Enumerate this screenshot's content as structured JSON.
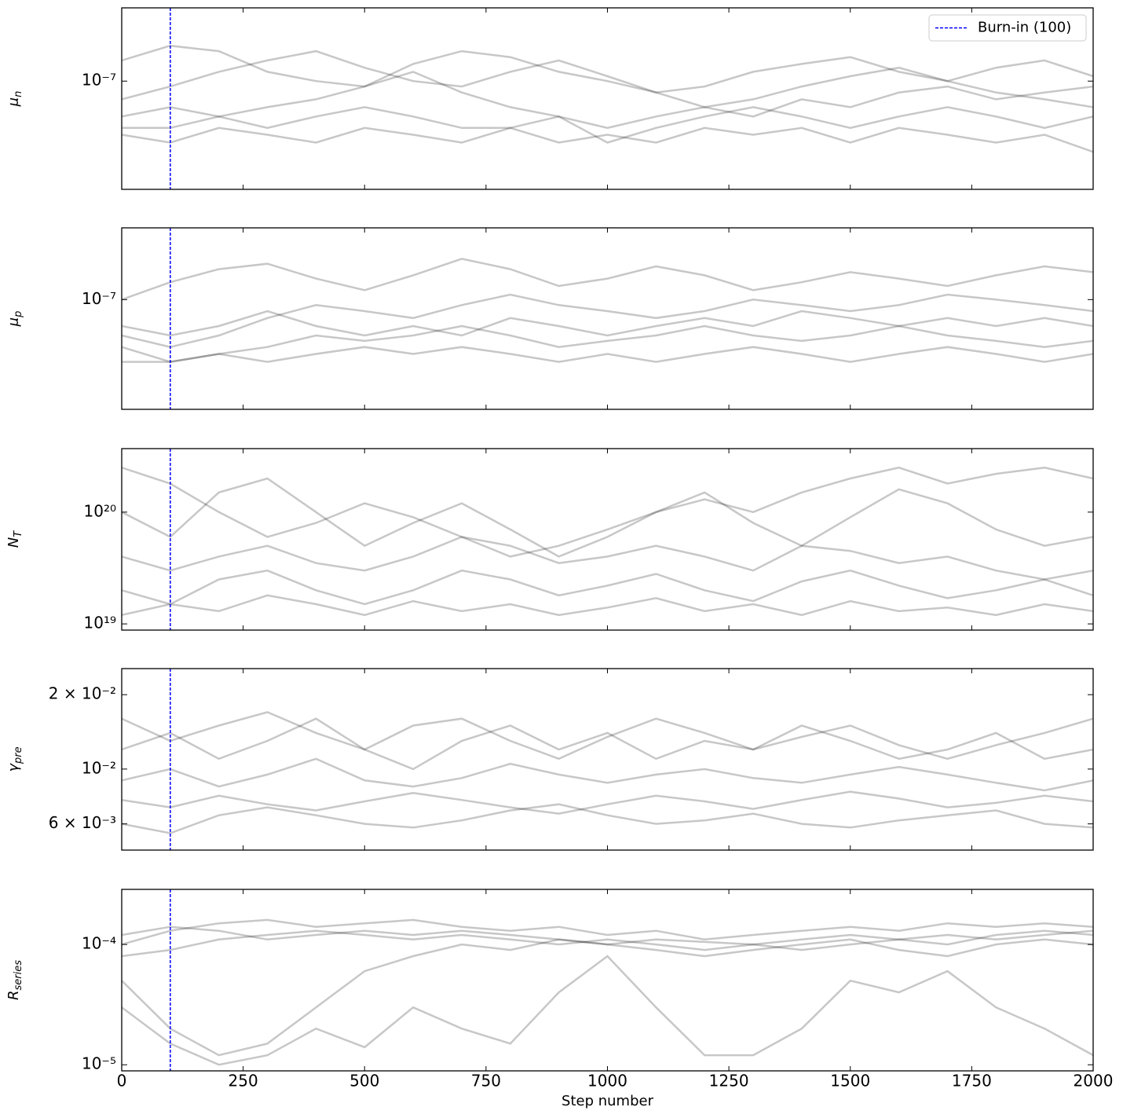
{
  "chart_data": [
    {
      "type": "line",
      "ylabel": {
        "symbol": "μ",
        "subscript": "n"
      },
      "log_y": true,
      "color": "#000000",
      "alpha": 0.22,
      "burn_in": 100,
      "burn_in_color": "#0000ff",
      "legend": {
        "label": "Burn-in (100)",
        "loc": "upper right"
      },
      "xlim": [
        0,
        2000
      ],
      "xticks": [
        0,
        250,
        500,
        750,
        1000,
        1250,
        1500,
        1750,
        2000
      ],
      "ylim": [
        1.2e-08,
        4.2e-07
      ],
      "yticks": [
        {
          "value": 1e-07,
          "label": "10⁻⁷"
        }
      ],
      "x": [
        0,
        100,
        200,
        300,
        400,
        500,
        600,
        700,
        800,
        900,
        1000,
        1100,
        1200,
        1300,
        1400,
        1500,
        1600,
        1700,
        1800,
        1900,
        2000
      ],
      "series": [
        {
          "values": [
            5e-08,
            6e-08,
            5e-08,
            4e-08,
            5e-08,
            6e-08,
            5e-08,
            4e-08,
            4e-08,
            5e-08,
            3e-08,
            4e-08,
            5e-08,
            6e-08,
            5e-08,
            4e-08,
            5e-08,
            6e-08,
            5e-08,
            4e-08,
            5e-08
          ]
        },
        {
          "values": [
            7e-08,
            9e-08,
            1.2e-07,
            1.5e-07,
            1.8e-07,
            1.3e-07,
            1e-07,
            9e-08,
            1.2e-07,
            1.5e-07,
            1.1e-07,
            8e-08,
            9e-08,
            1.2e-07,
            1.4e-07,
            1.6e-07,
            1.2e-07,
            1e-07,
            1.3e-07,
            1.5e-07,
            1.1e-07
          ]
        },
        {
          "values": [
            4e-08,
            4e-08,
            5e-08,
            6e-08,
            7e-08,
            9e-08,
            1.2e-07,
            8e-08,
            6e-08,
            5e-08,
            4e-08,
            5e-08,
            6e-08,
            5e-08,
            7e-08,
            6e-08,
            8e-08,
            9e-08,
            7e-08,
            8e-08,
            9e-08
          ]
        },
        {
          "values": [
            1.5e-07,
            2e-07,
            1.8e-07,
            1.2e-07,
            1e-07,
            9e-08,
            1.4e-07,
            1.8e-07,
            1.6e-07,
            1.2e-07,
            1e-07,
            8e-08,
            6e-08,
            7e-08,
            9e-08,
            1.1e-07,
            1.3e-07,
            1e-07,
            8e-08,
            7e-08,
            6e-08
          ]
        },
        {
          "values": [
            3.5e-08,
            3e-08,
            4e-08,
            3.5e-08,
            3e-08,
            4e-08,
            3.5e-08,
            3e-08,
            4e-08,
            3e-08,
            3.5e-08,
            3e-08,
            4e-08,
            3.5e-08,
            4e-08,
            3e-08,
            4e-08,
            3.5e-08,
            3e-08,
            3.5e-08,
            2.5e-08
          ]
        }
      ]
    },
    {
      "type": "line",
      "ylabel": {
        "symbol": "μ",
        "subscript": "p"
      },
      "log_y": true,
      "color": "#000000",
      "alpha": 0.22,
      "burn_in": 100,
      "burn_in_color": "#0000ff",
      "xlim": [
        0,
        2000
      ],
      "xticks": [
        0,
        250,
        500,
        750,
        1000,
        1250,
        1500,
        1750,
        2000
      ],
      "ylim": [
        1.2e-08,
        4e-07
      ],
      "yticks": [
        {
          "value": 1e-07,
          "label": "10⁻⁷"
        }
      ],
      "x": [
        0,
        100,
        200,
        300,
        400,
        500,
        600,
        700,
        800,
        900,
        1000,
        1100,
        1200,
        1300,
        1400,
        1500,
        1600,
        1700,
        1800,
        1900,
        2000
      ],
      "series": [
        {
          "values": [
            4e-08,
            3e-08,
            3.5e-08,
            4e-08,
            5e-08,
            4.5e-08,
            5e-08,
            6e-08,
            5e-08,
            4e-08,
            4.5e-08,
            5e-08,
            6e-08,
            5e-08,
            4.5e-08,
            5e-08,
            6e-08,
            5e-08,
            4.5e-08,
            4e-08,
            4.5e-08
          ]
        },
        {
          "values": [
            1e-07,
            1.4e-07,
            1.8e-07,
            2e-07,
            1.5e-07,
            1.2e-07,
            1.6e-07,
            2.2e-07,
            1.8e-07,
            1.3e-07,
            1.5e-07,
            1.9e-07,
            1.6e-07,
            1.2e-07,
            1.4e-07,
            1.7e-07,
            1.5e-07,
            1.3e-07,
            1.6e-07,
            1.9e-07,
            1.7e-07
          ]
        },
        {
          "values": [
            5e-08,
            4e-08,
            5e-08,
            7e-08,
            9e-08,
            8e-08,
            7e-08,
            9e-08,
            1.1e-07,
            9e-08,
            8e-08,
            7e-08,
            8e-08,
            1e-07,
            9e-08,
            8e-08,
            9e-08,
            1.1e-07,
            1e-07,
            9e-08,
            8e-08
          ]
        },
        {
          "values": [
            3e-08,
            3e-08,
            3.5e-08,
            3e-08,
            3.5e-08,
            4e-08,
            3.5e-08,
            4e-08,
            3.5e-08,
            3e-08,
            3.5e-08,
            3e-08,
            3.5e-08,
            4e-08,
            3.5e-08,
            3e-08,
            3.5e-08,
            4e-08,
            3.5e-08,
            3e-08,
            3.5e-08
          ]
        },
        {
          "values": [
            6e-08,
            5e-08,
            6e-08,
            8e-08,
            6e-08,
            5e-08,
            6e-08,
            5e-08,
            7e-08,
            6e-08,
            5e-08,
            6e-08,
            7e-08,
            6e-08,
            8e-08,
            7e-08,
            6e-08,
            7e-08,
            6e-08,
            7e-08,
            6e-08
          ]
        }
      ]
    },
    {
      "type": "line",
      "ylabel": {
        "symbol": "N",
        "subscript": "T"
      },
      "log_y": true,
      "color": "#000000",
      "alpha": 0.22,
      "burn_in": 100,
      "burn_in_color": "#0000ff",
      "xlim": [
        0,
        2000
      ],
      "xticks": [
        0,
        250,
        500,
        750,
        1000,
        1250,
        1500,
        1750,
        2000
      ],
      "ylim": [
        8.8e+18,
        3.7e+20
      ],
      "yticks": [
        {
          "value": 1e+19,
          "label": "10¹⁹"
        },
        {
          "value": 1e+20,
          "label": "10²⁰"
        }
      ],
      "x": [
        0,
        100,
        200,
        300,
        400,
        500,
        600,
        700,
        800,
        900,
        1000,
        1100,
        1200,
        1300,
        1400,
        1500,
        1600,
        1700,
        1800,
        1900,
        2000
      ],
      "series": [
        {
          "values": [
            1e+20,
            6e+19,
            1.5e+20,
            2e+20,
            1e+20,
            5e+19,
            8e+19,
            1.2e+20,
            7e+19,
            4e+19,
            6e+19,
            1e+20,
            1.5e+20,
            8e+19,
            5e+19,
            9e+19,
            1.6e+20,
            1.2e+20,
            7e+19,
            5e+19,
            6e+19
          ]
        },
        {
          "values": [
            2e+19,
            1.5e+19,
            2.5e+19,
            3e+19,
            2e+19,
            1.5e+19,
            2e+19,
            3e+19,
            2.5e+19,
            1.8e+19,
            2.2e+19,
            2.8e+19,
            2e+19,
            1.6e+19,
            2.4e+19,
            3e+19,
            2.2e+19,
            1.7e+19,
            2e+19,
            2.5e+19,
            1.8e+19
          ]
        },
        {
          "values": [
            2.5e+20,
            1.8e+20,
            1e+20,
            6e+19,
            8e+19,
            1.2e+20,
            9e+19,
            6e+19,
            4e+19,
            5e+19,
            7e+19,
            1e+20,
            1.3e+20,
            1e+20,
            1.5e+20,
            2e+20,
            2.5e+20,
            1.8e+20,
            2.2e+20,
            2.5e+20,
            2e+20
          ]
        },
        {
          "values": [
            4e+19,
            3e+19,
            4e+19,
            5e+19,
            3.5e+19,
            3e+19,
            4e+19,
            6e+19,
            5e+19,
            3.5e+19,
            4e+19,
            5e+19,
            4e+19,
            3e+19,
            5e+19,
            4.5e+19,
            3.5e+19,
            4e+19,
            3e+19,
            2.5e+19,
            3e+19
          ]
        },
        {
          "values": [
            1.2e+19,
            1.5e+19,
            1.3e+19,
            1.8e+19,
            1.5e+19,
            1.2e+19,
            1.6e+19,
            1.3e+19,
            1.5e+19,
            1.2e+19,
            1.4e+19,
            1.7e+19,
            1.3e+19,
            1.5e+19,
            1.2e+19,
            1.6e+19,
            1.3e+19,
            1.4e+19,
            1.2e+19,
            1.5e+19,
            1.3e+19
          ]
        }
      ]
    },
    {
      "type": "line",
      "ylabel": {
        "symbol": "γ",
        "subscript": "pre"
      },
      "log_y": true,
      "color": "#000000",
      "alpha": 0.22,
      "burn_in": 100,
      "burn_in_color": "#0000ff",
      "xlim": [
        0,
        2000
      ],
      "xticks": [
        0,
        250,
        500,
        750,
        1000,
        1250,
        1500,
        1750,
        2000
      ],
      "ylim": [
        0.0047,
        0.0255
      ],
      "yticks": [
        {
          "value": 0.006,
          "label": "6 × 10⁻³"
        },
        {
          "value": 0.01,
          "label": "10⁻²"
        },
        {
          "value": 0.02,
          "label": "2 × 10⁻²"
        }
      ],
      "x": [
        0,
        100,
        200,
        300,
        400,
        500,
        600,
        700,
        800,
        900,
        1000,
        1100,
        1200,
        1300,
        1400,
        1500,
        1600,
        1700,
        1800,
        1900,
        2000
      ],
      "series": [
        {
          "values": [
            0.012,
            0.014,
            0.011,
            0.013,
            0.016,
            0.012,
            0.01,
            0.013,
            0.015,
            0.012,
            0.014,
            0.011,
            0.013,
            0.012,
            0.015,
            0.013,
            0.011,
            0.012,
            0.014,
            0.011,
            0.012
          ]
        },
        {
          "values": [
            0.006,
            0.0055,
            0.0065,
            0.007,
            0.0065,
            0.006,
            0.0058,
            0.0062,
            0.0068,
            0.0072,
            0.0065,
            0.006,
            0.0062,
            0.0066,
            0.006,
            0.0058,
            0.0062,
            0.0065,
            0.0068,
            0.006,
            0.0058
          ]
        },
        {
          "values": [
            0.009,
            0.01,
            0.0085,
            0.0095,
            0.011,
            0.009,
            0.0085,
            0.0092,
            0.0105,
            0.0095,
            0.0088,
            0.0095,
            0.01,
            0.0092,
            0.0088,
            0.0095,
            0.0102,
            0.0095,
            0.0088,
            0.0082,
            0.009
          ]
        },
        {
          "values": [
            0.016,
            0.013,
            0.015,
            0.017,
            0.014,
            0.012,
            0.015,
            0.016,
            0.013,
            0.011,
            0.0135,
            0.016,
            0.014,
            0.012,
            0.0135,
            0.015,
            0.0125,
            0.011,
            0.0125,
            0.014,
            0.016
          ]
        },
        {
          "values": [
            0.0075,
            0.007,
            0.0078,
            0.0072,
            0.0068,
            0.0074,
            0.008,
            0.0075,
            0.007,
            0.0066,
            0.0072,
            0.0078,
            0.0074,
            0.0069,
            0.0075,
            0.0081,
            0.0076,
            0.007,
            0.0073,
            0.0078,
            0.0074
          ]
        }
      ]
    },
    {
      "type": "line",
      "ylabel": {
        "symbol": "R",
        "subscript": "series"
      },
      "log_y": true,
      "color": "#000000",
      "alpha": 0.22,
      "burn_in": 100,
      "burn_in_color": "#0000ff",
      "xlabel": "Step number",
      "xticklabels": true,
      "xlim": [
        0,
        2000
      ],
      "xticks": [
        0,
        250,
        500,
        750,
        1000,
        1250,
        1500,
        1750,
        2000
      ],
      "ylim": [
        8.9e-06,
        0.000287
      ],
      "yticks": [
        {
          "value": 1e-05,
          "label": "10⁻⁵"
        },
        {
          "value": 0.0001,
          "label": "10⁻⁴"
        }
      ],
      "x": [
        0,
        100,
        200,
        300,
        400,
        500,
        600,
        700,
        800,
        900,
        1000,
        1100,
        1200,
        1300,
        1400,
        1500,
        1600,
        1700,
        1800,
        1900,
        2000
      ],
      "series": [
        {
          "values": [
            0.0001,
            0.00013,
            0.00015,
            0.00016,
            0.00014,
            0.00015,
            0.00016,
            0.00014,
            0.00013,
            0.00014,
            0.00012,
            0.00013,
            0.00011,
            0.00012,
            0.00013,
            0.00014,
            0.00013,
            0.00015,
            0.00014,
            0.00015,
            0.00014
          ]
        },
        {
          "values": [
            5e-05,
            2e-05,
            1.2e-05,
            1.5e-05,
            3e-05,
            6e-05,
            8e-05,
            0.0001,
            9e-05,
            0.00011,
            0.0001,
            9e-05,
            8e-05,
            9e-05,
            0.0001,
            0.00011,
            9e-05,
            8e-05,
            0.0001,
            0.00011,
            0.0001
          ]
        },
        {
          "values": [
            8e-05,
            9e-05,
            0.00011,
            0.00012,
            0.00013,
            0.00012,
            0.00011,
            0.00012,
            0.00011,
            0.0001,
            0.00011,
            0.0001,
            9e-05,
            0.0001,
            0.00011,
            0.00012,
            0.00011,
            0.0001,
            0.00012,
            0.00013,
            0.00012
          ]
        },
        {
          "values": [
            3e-05,
            1.5e-05,
            1e-05,
            1.2e-05,
            2e-05,
            1.4e-05,
            3e-05,
            2e-05,
            1.5e-05,
            4e-05,
            8e-05,
            3e-05,
            1.2e-05,
            1.2e-05,
            2e-05,
            5e-05,
            4e-05,
            6e-05,
            3e-05,
            2e-05,
            1.2e-05
          ]
        },
        {
          "values": [
            0.00012,
            0.00014,
            0.00013,
            0.00011,
            0.00012,
            0.00013,
            0.00012,
            0.00013,
            0.00012,
            0.00011,
            0.0001,
            0.00011,
            0.000105,
            0.0001,
            9e-05,
            0.0001,
            0.00011,
            0.00012,
            0.00011,
            0.00012,
            0.00013
          ]
        }
      ]
    }
  ]
}
